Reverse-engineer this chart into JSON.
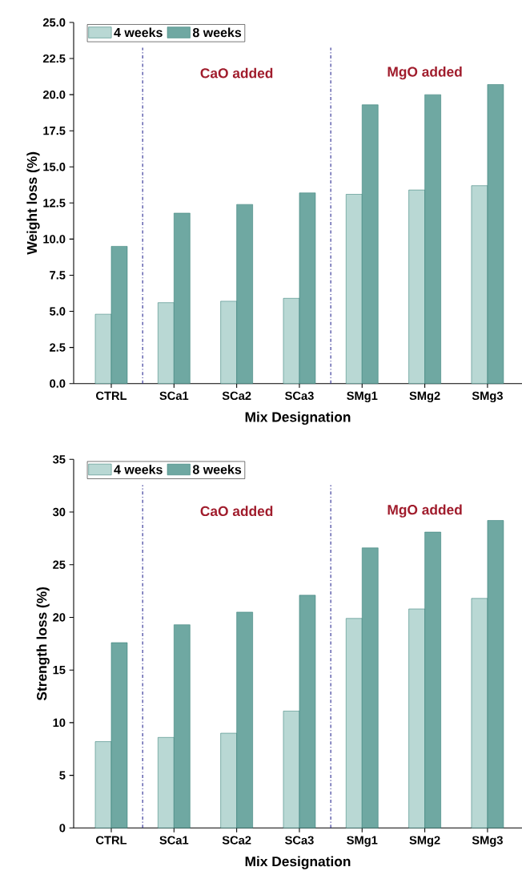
{
  "chart_data": [
    {
      "type": "bar",
      "categories": [
        "CTRL",
        "SCa1",
        "SCa2",
        "SCa3",
        "SMg1",
        "SMg2",
        "SMg3"
      ],
      "xlabel": "Mix Designation",
      "ylabel": "Weight loss (%)",
      "series": [
        {
          "name": "4 weeks",
          "color": "#b9d8d4",
          "values": [
            4.8,
            5.6,
            5.7,
            5.9,
            13.1,
            13.4,
            13.7
          ]
        },
        {
          "name": "8 weeks",
          "color": "#6fa8a2",
          "values": [
            9.5,
            11.8,
            12.4,
            13.2,
            19.3,
            20.0,
            20.7
          ]
        }
      ],
      "ylim": [
        0,
        25
      ],
      "yticks": [
        {
          "value": 0,
          "label": "0.0"
        },
        {
          "value": 2.5,
          "label": "2.5"
        },
        {
          "value": 5,
          "label": "5.0"
        },
        {
          "value": 7.5,
          "label": "7.5"
        },
        {
          "value": 10,
          "label": "10.0"
        },
        {
          "value": 12.5,
          "label": "12.5"
        },
        {
          "value": 15,
          "label": "15.0"
        },
        {
          "value": 17.5,
          "label": "17.5"
        },
        {
          "value": 20,
          "label": "20.0"
        },
        {
          "value": 22.5,
          "label": "22.5"
        },
        {
          "value": 25,
          "label": "25.0"
        }
      ],
      "annotations": [
        "CaO added",
        "MgO added"
      ],
      "legend": "top left",
      "grid": false
    },
    {
      "type": "bar",
      "categories": [
        "CTRL",
        "SCa1",
        "SCa2",
        "SCa3",
        "SMg1",
        "SMg2",
        "SMg3"
      ],
      "xlabel": "Mix Designation",
      "ylabel": "Strength loss (%)",
      "series": [
        {
          "name": "4 weeks",
          "color": "#b9d8d4",
          "values": [
            8.2,
            8.6,
            9.0,
            11.1,
            19.9,
            20.8,
            21.8
          ]
        },
        {
          "name": "8 weeks",
          "color": "#6fa8a2",
          "values": [
            17.6,
            19.3,
            20.5,
            22.1,
            26.6,
            28.1,
            29.2
          ]
        }
      ],
      "ylim": [
        0,
        35
      ],
      "yticks": [
        0,
        5,
        10,
        15,
        20,
        25,
        30,
        35
      ],
      "annotations": [
        "CaO added",
        "MgO added"
      ],
      "legend": "top left",
      "grid": false
    }
  ]
}
